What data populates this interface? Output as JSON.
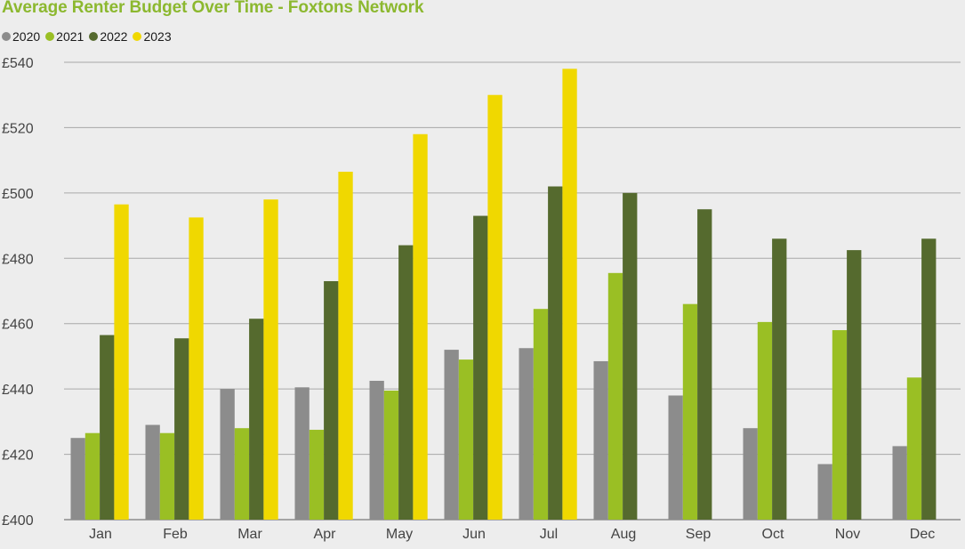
{
  "chart_data": {
    "type": "bar",
    "title": "Average Renter Budget Over Time - Foxtons Network",
    "xlabel": "",
    "ylabel": "",
    "ylim": [
      400,
      540
    ],
    "yticks": [
      400,
      420,
      440,
      460,
      480,
      500,
      520,
      540
    ],
    "ytick_labels": [
      "£400",
      "£420",
      "£440",
      "£460",
      "£480",
      "£500",
      "£520",
      "£540"
    ],
    "categories": [
      "Jan",
      "Feb",
      "Mar",
      "Apr",
      "May",
      "Jun",
      "Jul",
      "Aug",
      "Sep",
      "Oct",
      "Nov",
      "Dec"
    ],
    "grid": "horizontal",
    "legend_position": "top-left",
    "series": [
      {
        "name": "2020",
        "color": "#8c8c8c",
        "values": [
          425,
          429,
          440,
          440.5,
          442.5,
          452,
          452.5,
          448.5,
          438,
          428,
          417,
          422.5
        ]
      },
      {
        "name": "2021",
        "color": "#9abf24",
        "values": [
          426.5,
          426.5,
          428,
          427.5,
          439.5,
          449,
          464.5,
          475.5,
          466,
          460.5,
          458,
          443.5
        ]
      },
      {
        "name": "2022",
        "color": "#556a2e",
        "values": [
          456.5,
          455.5,
          461.5,
          473,
          484,
          493,
          502,
          500,
          495,
          486,
          482.5,
          486
        ]
      },
      {
        "name": "2023",
        "color": "#f0d800",
        "values": [
          496.5,
          492.5,
          498,
          506.5,
          518,
          530,
          538,
          null,
          null,
          null,
          null,
          null
        ]
      }
    ]
  }
}
